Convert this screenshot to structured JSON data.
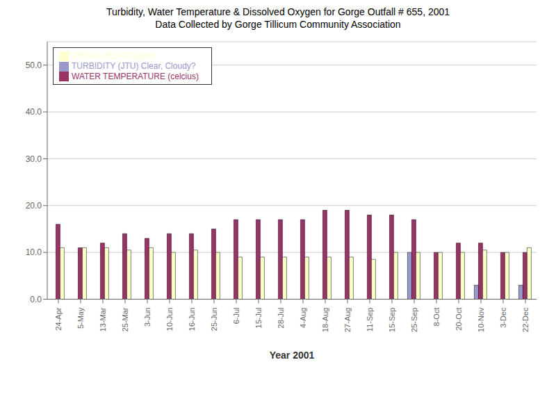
{
  "chart_data": {
    "type": "bar",
    "title": "Turbidity, Water Temperature & Dissolved Oxygen for Gorge Outfall # 655,  2001",
    "subtitle": "Data Collected by Gorge Tillicum Community Association",
    "x_label": "Year 2001",
    "categories": [
      "24-Apr",
      "5-May",
      "13-Mar",
      "25-Mar",
      "3-Jun",
      "10-Jun",
      "16-Jun",
      "25-Jun",
      "6-Jul",
      "15-Jul",
      "28-Jul",
      "4-Aug",
      "18-Aug",
      "27-Aug",
      "11-Sep",
      "15-Sep",
      "25-Sep",
      "8-Oct",
      "20-Oct",
      "10-Nov",
      "3-Dec",
      "22-Dec"
    ],
    "series": [
      {
        "name": "TURBIDITY (JTU) Clear, Cloudy?",
        "color": "#9999cc",
        "values": [
          0,
          0,
          0,
          0,
          0,
          0,
          0,
          0,
          0,
          0,
          0,
          0,
          0,
          0,
          0,
          0,
          10,
          0,
          0,
          3,
          0,
          3
        ]
      },
      {
        "name": "WATER TEMPERATURE (celcius)",
        "color": "#993366",
        "values": [
          16,
          11,
          12,
          14,
          13,
          14,
          14,
          15,
          17,
          17,
          17,
          17,
          19,
          19,
          18,
          18,
          17,
          10,
          12,
          12,
          10,
          10
        ]
      },
      {
        "name": "DISSOLVED O2 (ppm)",
        "color": "#ffffcc",
        "values": [
          11,
          11,
          11,
          10.5,
          11,
          10,
          10.5,
          10,
          9,
          9,
          9,
          9,
          9,
          9,
          8.5,
          10,
          10,
          10,
          10,
          10.5,
          10,
          11
        ]
      }
    ],
    "ylim": [
      0,
      55
    ],
    "yticks": [
      {
        "value": 0,
        "label": "0.0"
      },
      {
        "value": 10,
        "label": "10.0"
      },
      {
        "value": 20,
        "label": "20.0"
      },
      {
        "value": 30,
        "label": "30.0"
      },
      {
        "value": 40,
        "label": "40.0"
      },
      {
        "value": 50,
        "label": "50.0"
      }
    ],
    "grid": true,
    "legend": "upper left"
  }
}
